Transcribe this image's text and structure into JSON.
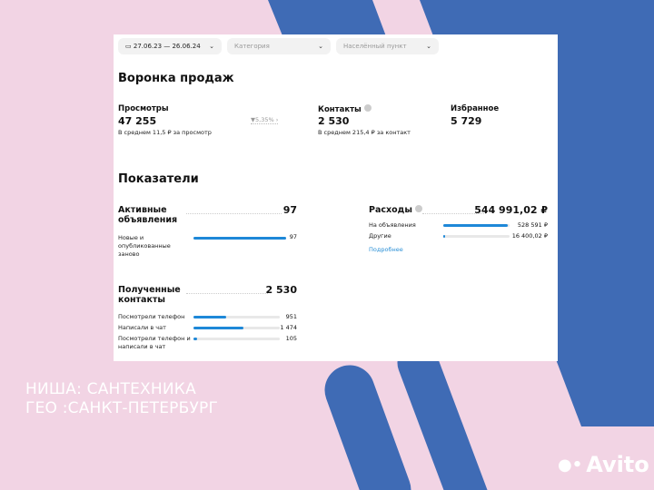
{
  "filters": {
    "date": "27.06.23 — 26.06.24",
    "category": "Категория",
    "city": "Населённый пункт"
  },
  "funnel": {
    "title": "Воронка продаж",
    "views": {
      "label": "Просмотры",
      "value": "47 255",
      "avg": "В среднем 11,5 ₽ за просмотр",
      "conversion": "5,35%"
    },
    "contacts": {
      "label": "Контакты",
      "value": "2 530",
      "avg": "В среднем 215,4 ₽ за контакт"
    },
    "favorites": {
      "label": "Избранное",
      "value": "5 729"
    }
  },
  "metrics": {
    "title": "Показатели",
    "active": {
      "label": "Активные объявления",
      "value": "97",
      "rows": [
        {
          "label": "Новые и опубликованные заново",
          "value": "97",
          "fraction": 1.0
        }
      ]
    },
    "received": {
      "label": "Полученные контакты",
      "value": "2 530",
      "rows": [
        {
          "label": "Посмотрели телефон",
          "value": "951",
          "fraction": 0.376
        },
        {
          "label": "Написали в чат",
          "value": "1 474",
          "fraction": 0.583
        },
        {
          "label": "Посмотрели телефон и написали в чат",
          "value": "105",
          "fraction": 0.041
        }
      ]
    },
    "expenses": {
      "label": "Расходы",
      "value": "544 991,02 ₽",
      "rows": [
        {
          "label": "На объявления",
          "value": "528 591 ₽",
          "fraction": 0.97
        },
        {
          "label": "Другие",
          "value": "16 400,02 ₽",
          "fraction": 0.03
        }
      ],
      "more": "Подробнее"
    }
  },
  "caption": {
    "line1": "НИША: САНТЕХНИКА",
    "line2": "ГЕО :САНКТ-ПЕТЕРБУРГ"
  },
  "logo": "Avito",
  "colors": {
    "background": "#f2d4e4",
    "blue": "#3f6bb5",
    "accent": "#1e88d8"
  }
}
